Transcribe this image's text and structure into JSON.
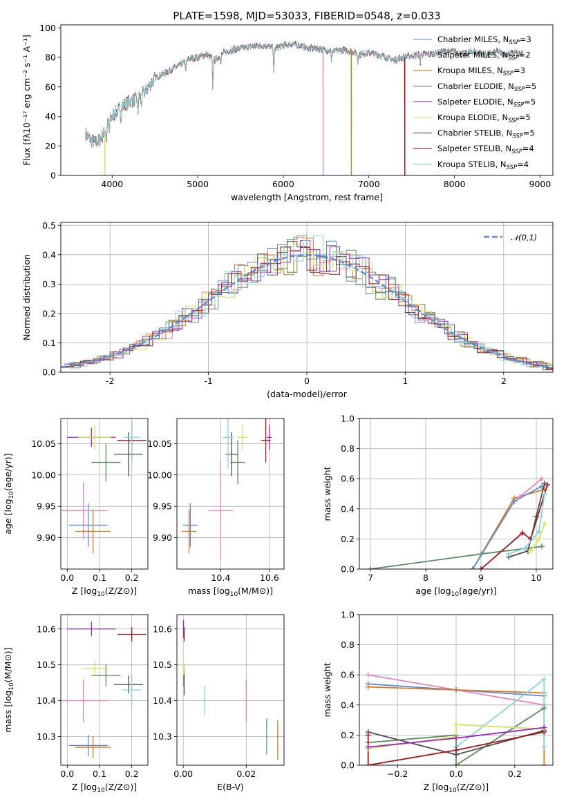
{
  "colors": {
    "chabrier_miles": "#5b8bd9",
    "salpeter_miles": "#e883be",
    "kroupa_miles": "#e0761e",
    "chabrier_elodie": "#5d8a5e",
    "salpeter_elodie": "#9d28c9",
    "kroupa_elodie": "#d5e35a",
    "chabrier_stelib": "#4d4d4d",
    "salpeter_stelib": "#a3151b",
    "kroupa_stelib": "#86d5dc"
  },
  "chart_data": [
    {
      "id": "spectrum",
      "type": "line",
      "title": "PLATE=1598, MJD=53033, FIBERID=0548, z=0.033",
      "xlabel": "wavelength [Angstrom, rest frame]",
      "ylabel": "Flux [fλ10⁻¹⁷ erg cm⁻² s⁻¹ A⁻¹]",
      "xlim": [
        3400,
        9150
      ],
      "ylim": [
        0,
        102
      ],
      "xticks": [
        4000,
        5000,
        6000,
        7000,
        8000,
        9000
      ],
      "yticks": [
        0,
        20,
        40,
        60,
        80,
        100
      ],
      "grid": false,
      "legend_position": "top-right",
      "legend": [
        {
          "key": "chabrier_miles",
          "label": "Chabrier MILES, N",
          "sub": "SSP",
          "tail": "=3"
        },
        {
          "key": "salpeter_miles",
          "label": "Salpeter MILES, N",
          "sub": "SSP",
          "tail": "=2"
        },
        {
          "key": "kroupa_miles",
          "label": "Kroupa MILES, N",
          "sub": "SSP",
          "tail": "=3"
        },
        {
          "key": "chabrier_elodie",
          "label": "Chabrier ELODIE, N",
          "sub": "SSP",
          "tail": "=5"
        },
        {
          "key": "salpeter_elodie",
          "label": "Salpeter ELODIE, N",
          "sub": "SSP",
          "tail": "=5"
        },
        {
          "key": "kroupa_elodie",
          "label": "Kroupa ELODIE, N",
          "sub": "SSP",
          "tail": "=5"
        },
        {
          "key": "chabrier_stelib",
          "label": "Chabrier STELIB, N",
          "sub": "SSP",
          "tail": "=5"
        },
        {
          "key": "salpeter_stelib",
          "label": "Salpeter STELIB, N",
          "sub": "SSP",
          "tail": "=4"
        },
        {
          "key": "kroupa_stelib",
          "label": "Kroupa STELIB, N",
          "sub": "SSP",
          "tail": "=4"
        }
      ],
      "continuum": [
        [
          3690,
          28
        ],
        [
          3750,
          24
        ],
        [
          3800,
          22
        ],
        [
          3850,
          24
        ],
        [
          3900,
          28
        ],
        [
          3950,
          35
        ],
        [
          4000,
          40
        ],
        [
          4050,
          43
        ],
        [
          4100,
          46
        ],
        [
          4200,
          50
        ],
        [
          4300,
          52
        ],
        [
          4400,
          58
        ],
        [
          4500,
          66
        ],
        [
          4600,
          69
        ],
        [
          4700,
          72
        ],
        [
          4800,
          75
        ],
        [
          4900,
          79
        ],
        [
          5000,
          80
        ],
        [
          5100,
          82
        ],
        [
          5200,
          78
        ],
        [
          5300,
          83
        ],
        [
          5400,
          85
        ],
        [
          5500,
          86
        ],
        [
          5600,
          87
        ],
        [
          5700,
          88
        ],
        [
          5800,
          88
        ],
        [
          5900,
          86
        ],
        [
          6000,
          88
        ],
        [
          6100,
          89
        ],
        [
          6200,
          88
        ],
        [
          6300,
          86
        ],
        [
          6400,
          86
        ],
        [
          6500,
          85
        ],
        [
          6600,
          84
        ],
        [
          6700,
          85
        ],
        [
          6800,
          84
        ],
        [
          6900,
          82
        ],
        [
          7000,
          83
        ],
        [
          7100,
          82
        ],
        [
          7200,
          80
        ],
        [
          7300,
          78
        ],
        [
          7400,
          80
        ],
        [
          7500,
          81
        ],
        [
          7600,
          82
        ],
        [
          7700,
          82
        ],
        [
          7800,
          83
        ],
        [
          7900,
          84
        ],
        [
          8000,
          84
        ],
        [
          8100,
          82
        ],
        [
          8200,
          84
        ],
        [
          8300,
          83
        ],
        [
          8400,
          82
        ],
        [
          8500,
          84
        ],
        [
          8600,
          82
        ],
        [
          8700,
          83
        ],
        [
          8800,
          82
        ]
      ],
      "absorption_lines": [
        [
          3934,
          -10
        ],
        [
          3968,
          -8
        ],
        [
          4102,
          -8
        ],
        [
          4300,
          -10
        ],
        [
          4340,
          -8
        ],
        [
          4861,
          -8
        ],
        [
          5175,
          -20
        ],
        [
          5270,
          -6
        ],
        [
          5890,
          -18
        ],
        [
          6563,
          -6
        ],
        [
          6870,
          -6
        ],
        [
          7600,
          -6
        ]
      ],
      "model_dropouts": [
        {
          "key": "kroupa_elodie",
          "x": 3915
        },
        {
          "key": "salpeter_miles",
          "x": 6465
        },
        {
          "key": "kroupa_miles",
          "x": 6795
        },
        {
          "key": "salpeter_stelib",
          "x": 7420
        }
      ]
    },
    {
      "id": "residuals",
      "type": "bar",
      "xlabel": "(data-model)/error",
      "ylabel": "Normed distribution",
      "xlim": [
        -2.5,
        2.5
      ],
      "ylim": [
        0,
        0.51
      ],
      "xticks": [
        -2,
        -1,
        0,
        1,
        2
      ],
      "yticks": [
        0.0,
        0.1,
        0.2,
        0.3,
        0.4,
        0.5
      ],
      "grid": true,
      "bin_width": 0.1,
      "legend_position": "top-right",
      "reference_curve": {
        "label": "𝒩(0,1)",
        "mean": 0,
        "sigma": 1,
        "color": "#5b8bd9"
      }
    },
    {
      "id": "age_vs_Z",
      "type": "scatter",
      "xlabel": "Z [log10(Z/Z⊙)]",
      "ylabel": "age  [log10(age/yr)]",
      "xlim": [
        -0.02,
        0.25
      ],
      "ylim": [
        9.85,
        10.09
      ],
      "xticks": [
        0.0,
        0.1,
        0.2
      ],
      "yticks": [
        9.9,
        9.95,
        10.0,
        10.05
      ],
      "grid": true,
      "points": [
        {
          "key": "chabrier_miles",
          "x": 0.065,
          "y": 9.92,
          "xerr": 0.06,
          "yerr": 0.035
        },
        {
          "key": "salpeter_miles",
          "x": 0.05,
          "y": 9.943,
          "xerr": 0.075,
          "yerr": 0.045
        },
        {
          "key": "kroupa_miles",
          "x": 0.08,
          "y": 9.91,
          "xerr": 0.055,
          "yerr": 0.035
        },
        {
          "key": "chabrier_elodie",
          "x": 0.12,
          "y": 10.02,
          "xerr": 0.045,
          "yerr": 0.03
        },
        {
          "key": "salpeter_elodie",
          "x": 0.075,
          "y": 10.06,
          "xerr": 0.075,
          "yerr": 0.015
        },
        {
          "key": "kroupa_elodie",
          "x": 0.085,
          "y": 10.06,
          "xerr": 0.05,
          "yerr": 0.02
        },
        {
          "key": "chabrier_stelib",
          "x": 0.19,
          "y": 10.033,
          "xerr": 0.045,
          "yerr": 0.035
        },
        {
          "key": "salpeter_stelib",
          "x": 0.2,
          "y": 10.055,
          "xerr": 0.045,
          "yerr": 0.03
        },
        {
          "key": "kroupa_stelib",
          "x": 0.2,
          "y": 10.06,
          "xerr": 0.025,
          "yerr": 0.045
        }
      ]
    },
    {
      "id": "age_vs_mass",
      "type": "scatter",
      "xlabel": "mass [log10(M/M⊙)]",
      "ylabel": "",
      "xlim": [
        10.22,
        10.66
      ],
      "ylim": [
        9.85,
        10.09
      ],
      "xticks": [
        10.4,
        10.6
      ],
      "yticks": [
        9.9,
        9.95,
        10.0,
        10.05
      ],
      "grid": true,
      "points": [
        {
          "key": "chabrier_miles",
          "x": 10.275,
          "y": 9.92,
          "xerr": 0.03,
          "yerr": 0.035
        },
        {
          "key": "salpeter_miles",
          "x": 10.4,
          "y": 9.943,
          "xerr": 0.05,
          "yerr": 0.08
        },
        {
          "key": "kroupa_miles",
          "x": 10.27,
          "y": 9.91,
          "xerr": 0.03,
          "yerr": 0.035
        },
        {
          "key": "chabrier_elodie",
          "x": 10.47,
          "y": 10.02,
          "xerr": 0.03,
          "yerr": 0.035
        },
        {
          "key": "salpeter_elodie",
          "x": 10.6,
          "y": 10.06,
          "xerr": 0.01,
          "yerr": 0.02
        },
        {
          "key": "kroupa_elodie",
          "x": 10.49,
          "y": 10.06,
          "xerr": 0.02,
          "yerr": 0.02
        },
        {
          "key": "chabrier_stelib",
          "x": 10.445,
          "y": 10.033,
          "xerr": 0.025,
          "yerr": 0.035
        },
        {
          "key": "salpeter_stelib",
          "x": 10.585,
          "y": 10.055,
          "xerr": 0.02,
          "yerr": 0.035
        },
        {
          "key": "kroupa_stelib",
          "x": 10.43,
          "y": 10.06,
          "xerr": 0.02,
          "yerr": 0.05
        }
      ]
    },
    {
      "id": "weight_vs_age",
      "type": "line",
      "xlabel": "age  [log10(age/yr)]",
      "ylabel": "mass weight",
      "xlim": [
        6.8,
        10.3
      ],
      "ylim": [
        0,
        1.0
      ],
      "xticks": [
        7,
        8,
        9,
        10
      ],
      "yticks": [
        0.0,
        0.2,
        0.4,
        0.6,
        0.8,
        1.0
      ],
      "grid": true,
      "series": [
        {
          "key": "chabrier_elodie",
          "x": [
            7.0,
            9.0,
            10.1
          ],
          "y": [
            0.0,
            0.1,
            0.15
          ]
        },
        {
          "key": "kroupa_miles",
          "x": [
            8.85,
            9.6,
            10.15
          ],
          "y": [
            0.0,
            0.47,
            0.53
          ]
        },
        {
          "key": "chabrier_miles",
          "x": [
            8.85,
            9.6,
            10.1
          ],
          "y": [
            0.0,
            0.45,
            0.55
          ]
        },
        {
          "key": "salpeter_miles",
          "x": [
            9.7,
            10.1
          ],
          "y": [
            0.48,
            0.6
          ]
        },
        {
          "key": "salpeter_stelib",
          "x": [
            9.0,
            9.75,
            9.9,
            10.2
          ],
          "y": [
            0.0,
            0.24,
            0.2,
            0.56
          ]
        },
        {
          "key": "chabrier_stelib",
          "x": [
            9.5,
            9.85,
            10.0,
            10.15
          ],
          "y": [
            0.08,
            0.12,
            0.35,
            0.57
          ]
        },
        {
          "key": "kroupa_stelib",
          "x": [
            9.5,
            9.8,
            10.05,
            10.15
          ],
          "y": [
            0.1,
            0.14,
            0.25,
            0.5
          ]
        },
        {
          "key": "kroupa_elodie",
          "x": [
            9.9,
            10.05,
            10.15
          ],
          "y": [
            0.12,
            0.2,
            0.3
          ]
        }
      ]
    },
    {
      "id": "mass_vs_Z",
      "type": "scatter",
      "xlabel": "Z [log10(Z/Z⊙)]",
      "ylabel": "mass [log10(M/M⊙)]",
      "xlim": [
        -0.02,
        0.25
      ],
      "ylim": [
        10.22,
        10.64
      ],
      "xticks": [
        0.0,
        0.1,
        0.2
      ],
      "yticks": [
        10.3,
        10.4,
        10.5,
        10.6
      ],
      "grid": true,
      "points": [
        {
          "key": "chabrier_miles",
          "x": 0.065,
          "y": 10.275,
          "xerr": 0.06,
          "yerr": 0.03
        },
        {
          "key": "salpeter_miles",
          "x": 0.05,
          "y": 10.4,
          "xerr": 0.075,
          "yerr": 0.06
        },
        {
          "key": "kroupa_miles",
          "x": 0.08,
          "y": 10.27,
          "xerr": 0.055,
          "yerr": 0.03
        },
        {
          "key": "chabrier_elodie",
          "x": 0.12,
          "y": 10.47,
          "xerr": 0.045,
          "yerr": 0.03
        },
        {
          "key": "salpeter_elodie",
          "x": 0.075,
          "y": 10.6,
          "xerr": 0.075,
          "yerr": 0.02
        },
        {
          "key": "kroupa_elodie",
          "x": 0.085,
          "y": 10.49,
          "xerr": 0.04,
          "yerr": 0.02
        },
        {
          "key": "chabrier_stelib",
          "x": 0.19,
          "y": 10.445,
          "xerr": 0.045,
          "yerr": 0.025
        },
        {
          "key": "salpeter_stelib",
          "x": 0.2,
          "y": 10.585,
          "xerr": 0.045,
          "yerr": 0.02
        },
        {
          "key": "kroupa_stelib",
          "x": 0.2,
          "y": 10.43,
          "xerr": 0.03,
          "yerr": 0.045
        }
      ]
    },
    {
      "id": "mass_vs_ebv",
      "type": "scatter",
      "xlabel": "E(B-V)",
      "ylabel": "",
      "xlim": [
        -0.002,
        0.032
      ],
      "ylim": [
        10.22,
        10.64
      ],
      "xticks": [
        0.0,
        0.02
      ],
      "yticks": [
        10.3,
        10.4,
        10.5,
        10.6
      ],
      "grid": true,
      "points": [
        {
          "key": "chabrier_miles",
          "x": 0.0265,
          "y": 10.3,
          "yerr": 0.05
        },
        {
          "key": "salpeter_miles",
          "x": 0.02,
          "y": 10.4,
          "yerr": 0.06
        },
        {
          "key": "kroupa_miles",
          "x": 0.03,
          "y": 10.29,
          "yerr": 0.055
        },
        {
          "key": "chabrier_elodie",
          "x": 0.0002,
          "y": 10.47,
          "yerr": 0.03
        },
        {
          "key": "salpeter_elodie",
          "x": 0.0001,
          "y": 10.6,
          "yerr": 0.025
        },
        {
          "key": "kroupa_elodie",
          "x": 0.0001,
          "y": 10.49,
          "yerr": 0.02
        },
        {
          "key": "chabrier_stelib",
          "x": 0.0003,
          "y": 10.445,
          "yerr": 0.03
        },
        {
          "key": "salpeter_stelib",
          "x": 0.0003,
          "y": 10.585,
          "yerr": 0.02
        },
        {
          "key": "kroupa_stelib",
          "x": 0.0068,
          "y": 10.4,
          "yerr": 0.04
        }
      ]
    },
    {
      "id": "weight_vs_Z",
      "type": "line",
      "xlabel": "Z [log10(Z/Z⊙)]",
      "ylabel": "mass weight",
      "xlim": [
        -0.33,
        0.33
      ],
      "ylim": [
        0,
        1.0
      ],
      "xticks": [
        -0.2,
        0.0,
        0.2
      ],
      "yticks": [
        0.0,
        0.2,
        0.4,
        0.6,
        0.8,
        1.0
      ],
      "grid": true,
      "series": [
        {
          "key": "salpeter_miles",
          "x": [
            -0.3,
            0.0,
            0.3
          ],
          "y": [
            0.6,
            0.5,
            0.4
          ]
        },
        {
          "key": "chabrier_miles",
          "x": [
            -0.3,
            0.0,
            0.3
          ],
          "y": [
            0.54,
            0.5,
            0.46
          ]
        },
        {
          "key": "kroupa_miles",
          "x": [
            -0.3,
            0.0,
            0.3,
            0.3
          ],
          "y": [
            0.52,
            0.5,
            0.48,
            0.0
          ]
        },
        {
          "key": "kroupa_stelib",
          "x": [
            0.0,
            0.3,
            0.3
          ],
          "y": [
            0.12,
            0.57,
            0.12
          ]
        },
        {
          "key": "chabrier_elodie",
          "x": [
            -0.3,
            0.0,
            0.0,
            0.3
          ],
          "y": [
            0.15,
            0.2,
            0.0,
            0.38
          ]
        },
        {
          "key": "chabrier_stelib",
          "x": [
            -0.3,
            0.0,
            0.3
          ],
          "y": [
            0.22,
            0.07,
            0.23
          ]
        },
        {
          "key": "salpeter_stelib",
          "x": [
            -0.3,
            -0.3,
            0.0,
            0.3
          ],
          "y": [
            0.2,
            0.0,
            0.1,
            0.22
          ]
        },
        {
          "key": "kroupa_elodie",
          "x": [
            -0.3,
            0.0,
            0.0,
            0.3
          ],
          "y": [
            0.11,
            0.19,
            0.27,
            0.24
          ]
        },
        {
          "key": "salpeter_elodie",
          "x": [
            -0.3,
            0.0,
            0.3
          ],
          "y": [
            0.12,
            0.18,
            0.25
          ]
        }
      ]
    }
  ]
}
